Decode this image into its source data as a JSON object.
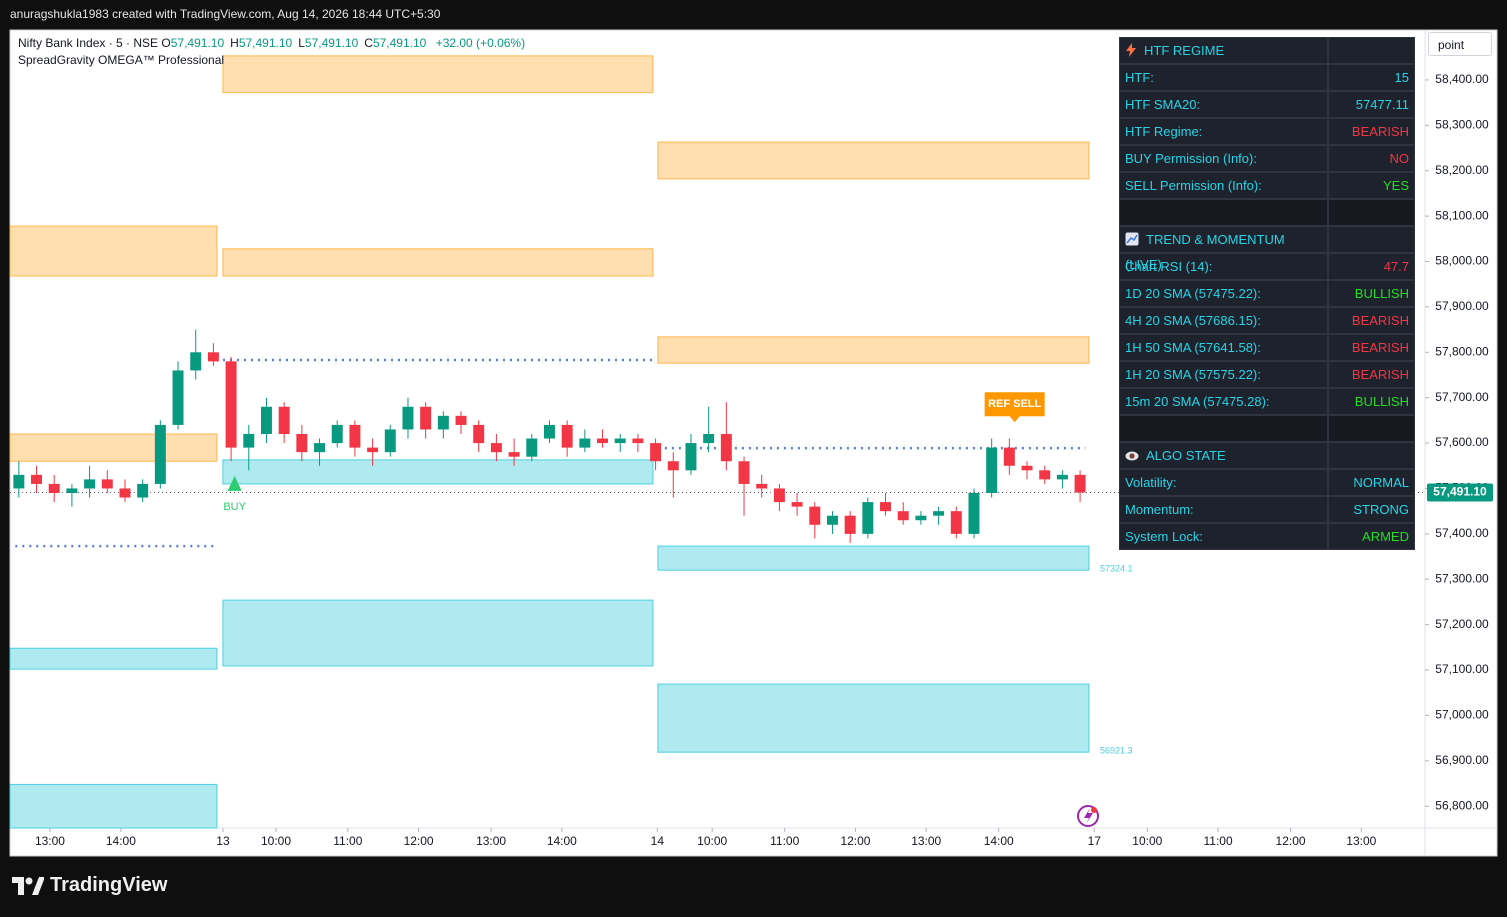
{
  "header": {
    "attribution": "anuragshukla1983 created with TradingView.com, Aug 14, 2026 18:44 UTC+5:30"
  },
  "ui": {
    "button": "point"
  },
  "footer": {
    "brand": "TradingView"
  },
  "chart_data": {
    "type": "candlestick",
    "symbol": "Nifty Bank Index · 5 · NSE",
    "ohlc": [
      {
        "label": "O",
        "value": "57,491.10"
      },
      {
        "label": "H",
        "value": "57,491.10"
      },
      {
        "label": "L",
        "value": "57,491.10"
      },
      {
        "label": "C",
        "value": "57,491.10"
      }
    ],
    "change": "+32.00 (+0.06%)",
    "indicator": "SpreadGravity OMEGA™ Professional",
    "xlim": [
      0,
      80
    ],
    "ylim": [
      56752,
      58510
    ],
    "grid": false,
    "up_color": "#089981",
    "down_color": "#f23645",
    "yticks": [
      {
        "value": 58400,
        "label": "58,400.00"
      },
      {
        "value": 58300,
        "label": "58,300.00"
      },
      {
        "value": 58200,
        "label": "58,200.00"
      },
      {
        "value": 58100,
        "label": "58,100.00"
      },
      {
        "value": 58000,
        "label": "58,000.00"
      },
      {
        "value": 57900,
        "label": "57,900.00"
      },
      {
        "value": 57800,
        "label": "57,800.00"
      },
      {
        "value": 57700,
        "label": "57,700.00"
      },
      {
        "value": 57600,
        "label": "57,600.00"
      },
      {
        "value": 57500,
        "label": "57,500.00"
      },
      {
        "value": 57400,
        "label": "57,400.00"
      },
      {
        "value": 57300,
        "label": "57,300.00"
      },
      {
        "value": 57200,
        "label": "57,200.00"
      },
      {
        "value": 57100,
        "label": "57,100.00"
      },
      {
        "value": 57000,
        "label": "57,000.00"
      },
      {
        "value": 56900,
        "label": "56,900.00"
      },
      {
        "value": 56800,
        "label": "56,800.00"
      }
    ],
    "xticks": [
      {
        "value": 2.26,
        "label": "13:00"
      },
      {
        "value": 6.27,
        "label": "14:00"
      },
      {
        "value": 12.04,
        "label": "13"
      },
      {
        "value": 15.04,
        "label": "10:00"
      },
      {
        "value": 19.1,
        "label": "11:00"
      },
      {
        "value": 23.1,
        "label": "12:00"
      },
      {
        "value": 27.2,
        "label": "13:00"
      },
      {
        "value": 31.2,
        "label": "14:00"
      },
      {
        "value": 36.6,
        "label": "14"
      },
      {
        "value": 39.7,
        "label": "10:00"
      },
      {
        "value": 43.8,
        "label": "11:00"
      },
      {
        "value": 47.8,
        "label": "12:00"
      },
      {
        "value": 51.8,
        "label": "13:00"
      },
      {
        "value": 55.9,
        "label": "14:00"
      },
      {
        "value": 61.3,
        "label": "17"
      },
      {
        "value": 64.3,
        "label": "10:00"
      },
      {
        "value": 68.3,
        "label": "11:00"
      },
      {
        "value": 72.4,
        "label": "12:00"
      },
      {
        "value": 76.4,
        "label": "13:00"
      }
    ],
    "candles": {
      "x": [
        0.5,
        1.5,
        2.5,
        3.5,
        4.5,
        5.5,
        6.5,
        7.5,
        8.5,
        9.5,
        10.5,
        11.5,
        12.5,
        13.5,
        14.5,
        15.5,
        16.5,
        17.5,
        18.5,
        19.5,
        20.5,
        21.5,
        22.5,
        23.5,
        24.5,
        25.5,
        26.5,
        27.5,
        28.5,
        29.5,
        30.5,
        31.5,
        32.5,
        33.5,
        34.5,
        35.5,
        36.5,
        37.5,
        38.5,
        39.5,
        40.5,
        41.5,
        42.5,
        43.5,
        44.5,
        45.5,
        46.5,
        47.5,
        48.5,
        49.5,
        50.5,
        51.5,
        52.5,
        53.5,
        54.5,
        55.5,
        56.5,
        57.5,
        58.5,
        59.5,
        60.5
      ],
      "open": [
        57500,
        57530,
        57510,
        57490,
        57500,
        57520,
        57500,
        57480,
        57510,
        57640,
        57760,
        57800,
        57780,
        57590,
        57620,
        57680,
        57620,
        57580,
        57600,
        57640,
        57590,
        57580,
        57630,
        57680,
        57630,
        57660,
        57640,
        57600,
        57580,
        57570,
        57610,
        57640,
        57590,
        57610,
        57600,
        57610,
        57600,
        57560,
        57540,
        57600,
        57620,
        57560,
        57510,
        57500,
        57470,
        57460,
        57420,
        57440,
        57400,
        57470,
        57450,
        57430,
        57440,
        57450,
        57400,
        57490,
        57590,
        57550,
        57540,
        57520,
        57530
      ],
      "high": [
        57560,
        57550,
        57530,
        57510,
        57550,
        57540,
        57520,
        57520,
        57650,
        57780,
        57850,
        57820,
        57790,
        57640,
        57700,
        57690,
        57640,
        57610,
        57650,
        57650,
        57610,
        57640,
        57700,
        57690,
        57670,
        57670,
        57650,
        57620,
        57610,
        57620,
        57650,
        57650,
        57630,
        57630,
        57620,
        57620,
        57610,
        57580,
        57620,
        57680,
        57690,
        57570,
        57530,
        57510,
        57490,
        57470,
        57450,
        57450,
        57480,
        57490,
        57470,
        57450,
        57460,
        57460,
        57500,
        57610,
        57610,
        57560,
        57550,
        57540,
        57540
      ],
      "low": [
        57480,
        57490,
        57470,
        57460,
        57480,
        57490,
        57470,
        57470,
        57500,
        57630,
        57740,
        57770,
        57560,
        57540,
        57600,
        57600,
        57560,
        57550,
        57590,
        57570,
        57550,
        57570,
        57610,
        57610,
        57610,
        57620,
        57580,
        57560,
        57550,
        57560,
        57600,
        57570,
        57580,
        57590,
        57580,
        57580,
        57540,
        57480,
        57530,
        57580,
        57540,
        57440,
        57480,
        57450,
        57440,
        57390,
        57400,
        57380,
        57390,
        57440,
        57420,
        57420,
        57420,
        57390,
        57390,
        57480,
        57530,
        57520,
        57510,
        57500,
        57470
      ],
      "close": [
        57530,
        57510,
        57490,
        57500,
        57520,
        57500,
        57480,
        57510,
        57640,
        57760,
        57800,
        57780,
        57590,
        57620,
        57680,
        57620,
        57580,
        57600,
        57640,
        57590,
        57580,
        57630,
        57680,
        57630,
        57660,
        57640,
        57600,
        57580,
        57570,
        57610,
        57640,
        57590,
        57610,
        57600,
        57610,
        57600,
        57560,
        57540,
        57600,
        57620,
        57560,
        57510,
        57500,
        57470,
        57460,
        57420,
        57440,
        57400,
        57470,
        57450,
        57430,
        57440,
        57450,
        57400,
        57490,
        57590,
        57550,
        57540,
        57520,
        57530,
        57491.1
      ]
    },
    "zones": [
      {
        "x": [
          12.04,
          36.35
        ],
        "y": [
          58372,
          58453
        ],
        "color": "#ffb74d"
      },
      {
        "x": [
          36.63,
          61.0
        ],
        "y": [
          58182,
          58263
        ],
        "color": "#ffb74d"
      },
      {
        "x": [
          0,
          11.7
        ],
        "y": [
          57968,
          58078
        ],
        "color": "#ffb74d"
      },
      {
        "x": [
          12.04,
          36.35
        ],
        "y": [
          57968,
          58028
        ],
        "color": "#ffb74d"
      },
      {
        "x": [
          36.63,
          61.0
        ],
        "y": [
          57776,
          57834
        ],
        "color": "#ffb74d"
      },
      {
        "x": [
          0,
          11.7
        ],
        "y": [
          57560,
          57620
        ],
        "color": "#ffb74d"
      },
      {
        "x": [
          12.04,
          36.35
        ],
        "y": [
          57510,
          57563
        ],
        "color": "#4dd0e1"
      },
      {
        "x": [
          36.63,
          61.0
        ],
        "y": [
          57320,
          57373
        ],
        "color": "#4dd0e1",
        "label": "57324.1"
      },
      {
        "x": [
          12.04,
          36.35
        ],
        "y": [
          57109,
          57254
        ],
        "color": "#4dd0e1"
      },
      {
        "x": [
          0,
          11.7
        ],
        "y": [
          57102,
          57148
        ],
        "color": "#4dd0e1"
      },
      {
        "x": [
          36.63,
          61.0
        ],
        "y": [
          56919,
          57069
        ],
        "color": "#4dd0e1",
        "label": "56921.3"
      },
      {
        "x": [
          0,
          11.7
        ],
        "y": [
          56752,
          56848
        ],
        "color": "#4dd0e1"
      }
    ],
    "levels": [
      {
        "value": 57783,
        "x": [
          12.04,
          36.35
        ],
        "color": "#5b7cd9"
      },
      {
        "value": 57373,
        "x": [
          0.3,
          11.7
        ],
        "color": "#5b7cd9"
      },
      {
        "value": 57589,
        "x": [
          36.63,
          60.8
        ],
        "color": "#5b7cd9"
      }
    ],
    "last_price": {
      "value": 57491.1,
      "label": "57,491.10",
      "color": "#089981"
    },
    "signals": [
      {
        "label": "BUY",
        "x": 12.7,
        "value": 57510,
        "color": "#2ecc71",
        "side": "below"
      },
      {
        "label": "REF SELL",
        "x": 56.8,
        "value": 57646,
        "color": "#ff9800",
        "side": "above"
      }
    ]
  },
  "table": {
    "sections": [
      {
        "title": "HTF REGIME",
        "rows": [
          {
            "label": "HTF:",
            "value": "15",
            "color": "#26d4e6"
          },
          {
            "label": "HTF SMA20:",
            "value": "57477.11",
            "color": "#26d4e6"
          },
          {
            "label": "HTF Regime:",
            "value": "BEARISH",
            "color": "#f23645"
          },
          {
            "label": "BUY Permission (Info):",
            "value": "NO",
            "color": "#f23645"
          },
          {
            "label": "SELL Permission (Info):",
            "value": "YES",
            "color": "#22dd22"
          }
        ]
      },
      {
        "title": "TREND & MOMENTUM (LIVE)",
        "rows": [
          {
            "label": "Chart RSI (14):",
            "value": "47.7",
            "color": "#f23645"
          },
          {
            "label": "1D 20 SMA (57475.22):",
            "value": "BULLISH",
            "color": "#22dd22"
          },
          {
            "label": "4H 20 SMA (57686.15):",
            "value": "BEARISH",
            "color": "#f23645"
          },
          {
            "label": "1H 50 SMA (57641.58):",
            "value": "BEARISH",
            "color": "#f23645"
          },
          {
            "label": "1H 20 SMA (57575.22):",
            "value": "BEARISH",
            "color": "#f23645"
          },
          {
            "label": "15m 20 SMA (57475.28):",
            "value": "BULLISH",
            "color": "#22dd22"
          }
        ]
      },
      {
        "title": "ALGO STATE",
        "rows": [
          {
            "label": "Volatility:",
            "value": "NORMAL",
            "color": "#26d4e6"
          },
          {
            "label": "Momentum:",
            "value": "STRONG",
            "color": "#26d4e6"
          },
          {
            "label": "System Lock:",
            "value": "ARMED",
            "color": "#22dd22"
          }
        ]
      }
    ]
  }
}
